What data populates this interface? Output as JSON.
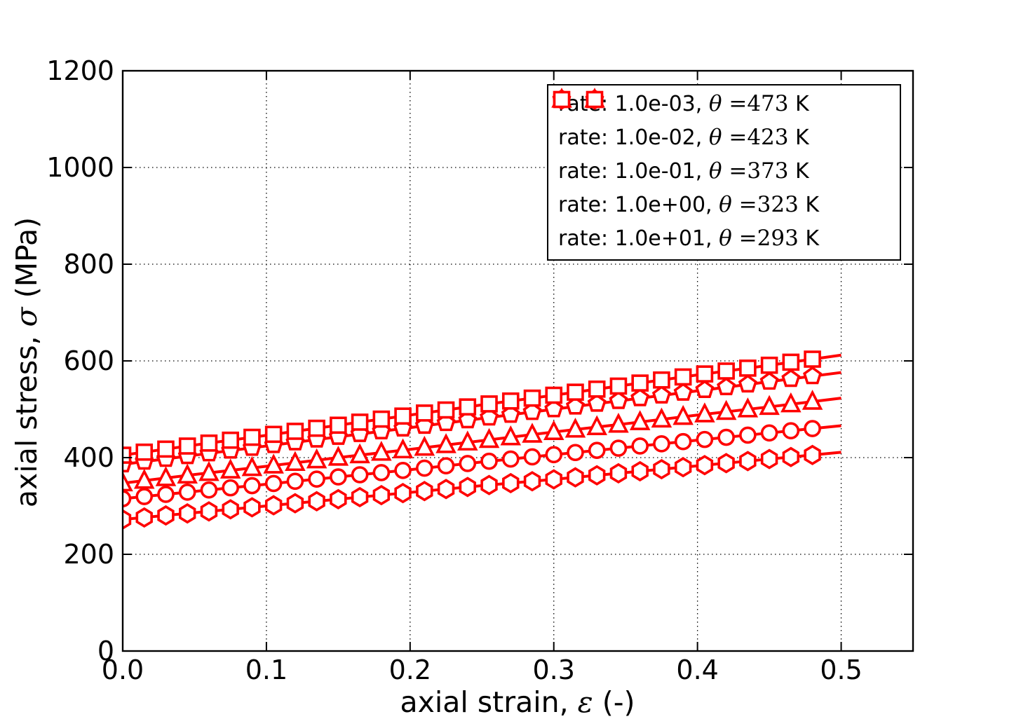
{
  "figure": {
    "background": "#ffffff",
    "frame_color": "#000000",
    "accent_color": "#ff0000"
  },
  "axis": {
    "xlabel": {
      "prefix": "axial strain, ",
      "symbol": "ε",
      "suffix": " (-)"
    },
    "ylabel": {
      "prefix": "axial stress, ",
      "symbol": "σ",
      "suffix": " (MPa)"
    },
    "xtick_labels": [
      "0.0",
      "0.1",
      "0.2",
      "0.3",
      "0.4",
      "0.5"
    ],
    "ytick_labels": [
      "0",
      "200",
      "400",
      "600",
      "800",
      "1000",
      "1200"
    ]
  },
  "chart_data": {
    "type": "line",
    "title": "",
    "xlabel": "axial strain, ε (-)",
    "ylabel": "axial stress, σ (MPa)",
    "xlim": [
      0,
      0.55
    ],
    "ylim": [
      0,
      1200
    ],
    "xticks": [
      0,
      0.1,
      0.2,
      0.3,
      0.4,
      0.5
    ],
    "yticks": [
      0,
      200,
      400,
      600,
      800,
      1000,
      1200
    ],
    "grid": true,
    "grid_style": "dotted",
    "legend_position": "upper right",
    "line_color": "#ff0000",
    "marker_face_color": "#ffffff",
    "marker_interval": 0.015,
    "x": [
      0,
      0.05,
      0.1,
      0.15,
      0.2,
      0.25,
      0.3,
      0.35,
      0.4,
      0.45,
      0.5
    ],
    "series": [
      {
        "name": "rate: 1.0e-03, θ=473 K",
        "marker": "hexagon",
        "rate": "1.0e-03",
        "temperature_K": 473,
        "values": [
          272,
          286,
          300,
          314,
          328,
          342,
          355,
          369,
          383,
          397,
          411
        ],
        "legend": {
          "rate_label": "rate: 1.0e-03, ",
          "theta_symbol": "θ",
          "theta_value": " =473",
          "unit": " K"
        }
      },
      {
        "name": "rate: 1.0e-02, θ=423 K",
        "marker": "circle",
        "rate": "1.0e-02",
        "temperature_K": 423,
        "values": [
          315,
          330,
          345,
          360,
          375,
          391,
          406,
          421,
          436,
          451,
          466
        ],
        "legend": {
          "rate_label": "rate: 1.0e-02, ",
          "theta_symbol": "θ",
          "theta_value": " =423",
          "unit": " K"
        }
      },
      {
        "name": "rate: 1.0e-01, θ=373 K",
        "marker": "triangle",
        "rate": "1.0e-01",
        "temperature_K": 373,
        "values": [
          347,
          365,
          382,
          400,
          417,
          435,
          453,
          470,
          488,
          505,
          523
        ],
        "legend": {
          "rate_label": "rate: 1.0e-01, ",
          "theta_symbol": "θ",
          "theta_value": " =373",
          "unit": " K"
        }
      },
      {
        "name": "rate: 1.0e+00, θ=323 K",
        "marker": "pentagon",
        "rate": "1.0e+00",
        "temperature_K": 323,
        "values": [
          386,
          405,
          424,
          443,
          462,
          481,
          500,
          519,
          538,
          557,
          576
        ],
        "legend": {
          "rate_label": "rate: 1.0e+00, ",
          "theta_symbol": "θ",
          "theta_value": " =323",
          "unit": " K"
        }
      },
      {
        "name": "rate: 1.0e+01, θ=293 K",
        "marker": "square",
        "rate": "1.0e+01",
        "temperature_K": 293,
        "values": [
          405,
          426,
          446,
          467,
          488,
          509,
          529,
          550,
          571,
          591,
          612
        ],
        "legend": {
          "rate_label": "rate: 1.0e+01, ",
          "theta_symbol": "θ",
          "theta_value": " =293",
          "unit": " K"
        }
      }
    ]
  }
}
